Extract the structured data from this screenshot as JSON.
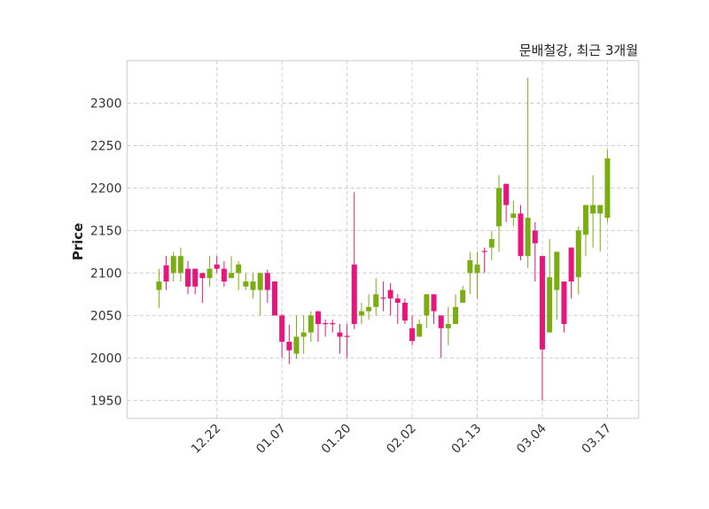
{
  "chart_data": {
    "type": "candlestick",
    "title": "문배철강, 최근 3개월",
    "xlabel": "",
    "ylabel": "Price",
    "ylim": [
      1929,
      2350
    ],
    "xlim": [
      -4.4,
      66.3
    ],
    "yticks": [
      1950,
      2000,
      2050,
      2100,
      2150,
      2200,
      2250,
      2300
    ],
    "xticks": [
      {
        "index": 8,
        "label": "12.22"
      },
      {
        "index": 17,
        "label": "01.07"
      },
      {
        "index": 26,
        "label": "01.20"
      },
      {
        "index": 35,
        "label": "02.02"
      },
      {
        "index": 44,
        "label": "02.13"
      },
      {
        "index": 53,
        "label": "03.04"
      },
      {
        "index": 62,
        "label": "03.17"
      }
    ],
    "grid": true,
    "colors": {
      "up": "#7aad12",
      "down": "#e8157d",
      "grid": "#cccccc",
      "frame": "#d9d9d9"
    },
    "ohlc": [
      [
        2080,
        2105,
        2059,
        2090
      ],
      [
        2109,
        2120,
        2080,
        2090
      ],
      [
        2100,
        2125,
        2090,
        2120
      ],
      [
        2100,
        2130,
        2090,
        2120
      ],
      [
        2105,
        2114,
        2075,
        2084
      ],
      [
        2105,
        2105,
        2075,
        2084
      ],
      [
        2100,
        2100,
        2065,
        2094
      ],
      [
        2094,
        2120,
        2084,
        2105
      ],
      [
        2110,
        2120,
        2100,
        2105
      ],
      [
        2105,
        2114,
        2084,
        2090
      ],
      [
        2094,
        2120,
        2094,
        2100
      ],
      [
        2100,
        2114,
        2080,
        2110
      ],
      [
        2084,
        2100,
        2080,
        2090
      ],
      [
        2080,
        2100,
        2070,
        2090
      ],
      [
        2080,
        2100,
        2050,
        2100
      ],
      [
        2100,
        2104,
        2065,
        2080
      ],
      [
        2090,
        2090,
        2050,
        2050
      ],
      [
        2050,
        2052,
        2000,
        2019
      ],
      [
        2019,
        2039,
        1993,
        2009
      ],
      [
        2005,
        2050,
        1999,
        2025
      ],
      [
        2025,
        2050,
        2005,
        2030
      ],
      [
        2030,
        2055,
        2019,
        2050
      ],
      [
        2055,
        2055,
        2019,
        2040
      ],
      [
        2041,
        2045,
        2025,
        2040
      ],
      [
        2041,
        2045,
        2030,
        2040
      ],
      [
        2030,
        2040,
        2005,
        2025
      ],
      [
        2026,
        2040,
        2000,
        2025
      ],
      [
        2110,
        2195,
        2034,
        2040
      ],
      [
        2050,
        2065,
        2040,
        2055
      ],
      [
        2055,
        2075,
        2045,
        2060
      ],
      [
        2060,
        2094,
        2050,
        2075
      ],
      [
        2071,
        2090,
        2055,
        2070
      ],
      [
        2080,
        2088,
        2050,
        2070
      ],
      [
        2070,
        2075,
        2040,
        2065
      ],
      [
        2065,
        2070,
        2040,
        2044
      ],
      [
        2035,
        2050,
        2015,
        2020
      ],
      [
        2025,
        2045,
        2025,
        2040
      ],
      [
        2050,
        2075,
        2035,
        2075
      ],
      [
        2075,
        2075,
        2040,
        2055
      ],
      [
        2050,
        2050,
        2000,
        2035
      ],
      [
        2035,
        2060,
        2015,
        2040
      ],
      [
        2040,
        2075,
        2040,
        2060
      ],
      [
        2065,
        2085,
        2065,
        2080
      ],
      [
        2100,
        2125,
        2075,
        2115
      ],
      [
        2100,
        2125,
        2070,
        2110
      ],
      [
        2126,
        2130,
        2100,
        2125
      ],
      [
        2130,
        2150,
        2115,
        2140
      ],
      [
        2155,
        2215,
        2125,
        2200
      ],
      [
        2205,
        2205,
        2160,
        2180
      ],
      [
        2165,
        2185,
        2155,
        2170
      ],
      [
        2170,
        2180,
        2115,
        2120
      ],
      [
        2120,
        2330,
        2106,
        2165
      ],
      [
        2150,
        2160,
        2090,
        2135
      ],
      [
        2120,
        2120,
        1950,
        2010
      ],
      [
        2030,
        2140,
        2030,
        2095
      ],
      [
        2080,
        2125,
        2045,
        2125
      ],
      [
        2090,
        2090,
        2030,
        2040
      ],
      [
        2130,
        2130,
        2070,
        2090
      ],
      [
        2095,
        2155,
        2075,
        2150
      ],
      [
        2145,
        2180,
        2120,
        2180
      ],
      [
        2170,
        2215,
        2130,
        2180
      ],
      [
        2170,
        2180,
        2125,
        2180
      ],
      [
        2165,
        2245,
        2160,
        2235
      ]
    ]
  }
}
